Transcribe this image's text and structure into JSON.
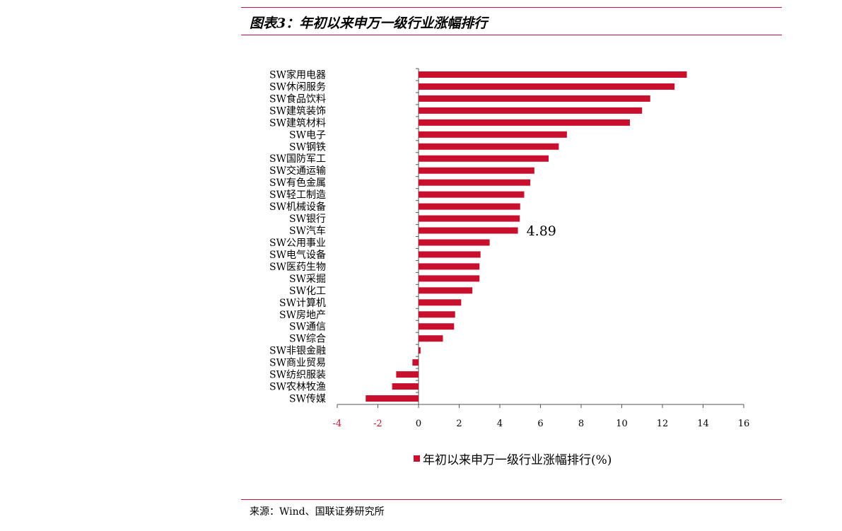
{
  "header": {
    "title": "图表3：年初以来申万一级行业涨幅排行"
  },
  "footer": {
    "source": "来源：Wind、国联证券研究所"
  },
  "colors": {
    "bar": "#c8102e",
    "rule": "#c0143c",
    "negative_tick": "#c8102e",
    "axis": "#555555"
  },
  "chart_data": {
    "type": "bar",
    "orientation": "horizontal",
    "categories": [
      "SW家用电器",
      "SW休闲服务",
      "SW食品饮料",
      "SW建筑装饰",
      "SW建筑材料",
      "SW电子",
      "SW钢铁",
      "SW国防军工",
      "SW交通运输",
      "SW有色金属",
      "SW轻工制造",
      "SW机械设备",
      "SW银行",
      "SW汽车",
      "SW公用事业",
      "SW电气设备",
      "SW医药生物",
      "SW采掘",
      "SW化工",
      "SW计算机",
      "SW房地产",
      "SW通信",
      "SW综合",
      "SW非银金融",
      "SW商业贸易",
      "SW纺织服装",
      "SW农林牧渔",
      "SW传媒"
    ],
    "series": [
      {
        "name": "年初以来申万一级行业涨幅排行(%)",
        "values": [
          13.2,
          12.6,
          11.4,
          11.0,
          10.4,
          7.3,
          6.9,
          6.4,
          5.7,
          5.5,
          5.2,
          5.0,
          4.98,
          4.89,
          3.5,
          3.05,
          3.0,
          3.0,
          2.65,
          2.1,
          1.8,
          1.75,
          1.2,
          0.1,
          -0.3,
          -1.1,
          -1.3,
          -2.6
        ]
      }
    ],
    "annotations": [
      {
        "category": "SW汽车",
        "text": "4.89"
      }
    ],
    "xlim": [
      -4,
      16
    ],
    "xticks": [
      "-4",
      "-2",
      "0",
      "2",
      "4",
      "6",
      "8",
      "10",
      "12",
      "14",
      "16"
    ],
    "negative_ticks": [
      "-4",
      "-2"
    ],
    "grid": false,
    "legend_position": "bottom",
    "xlabel": "",
    "ylabel": ""
  }
}
